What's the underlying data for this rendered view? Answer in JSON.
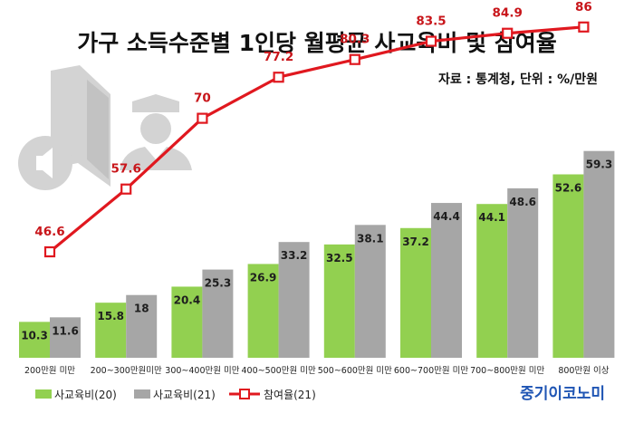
{
  "chart_data": {
    "type": "bar",
    "title": "가구 소득수준별 1인당 월평균 사교육비 및 참여율",
    "source_note": "자료 : 통계청, 단위 : %/만원",
    "categories": [
      "200만원 미만",
      "200~300만원미만",
      "300~400만원 미만",
      "400~500만원 미만",
      "500~600만원 미만",
      "600~700만원 미만",
      "700~800만원 미만",
      "800만원 이상"
    ],
    "series": [
      {
        "name": "사교육비(20)",
        "type": "bar",
        "color": "#92d050",
        "values": [
          10.3,
          15.8,
          20.4,
          26.9,
          32.5,
          37.2,
          44.1,
          52.6
        ]
      },
      {
        "name": "사교육비(21)",
        "type": "bar",
        "color": "#a6a6a6",
        "values": [
          11.6,
          18,
          25.3,
          33.2,
          38.1,
          44.4,
          48.6,
          59.3
        ]
      },
      {
        "name": "참여율(21)",
        "type": "line",
        "color": "#e0181f",
        "values": [
          46.6,
          57.6,
          70,
          77.2,
          80.3,
          83.5,
          84.9,
          86
        ]
      }
    ],
    "legend_position": "bottom-left",
    "grid": false
  },
  "brand": "중기이코노미",
  "icons": [
    "speaker-icon",
    "book-icon",
    "student-icon"
  ]
}
